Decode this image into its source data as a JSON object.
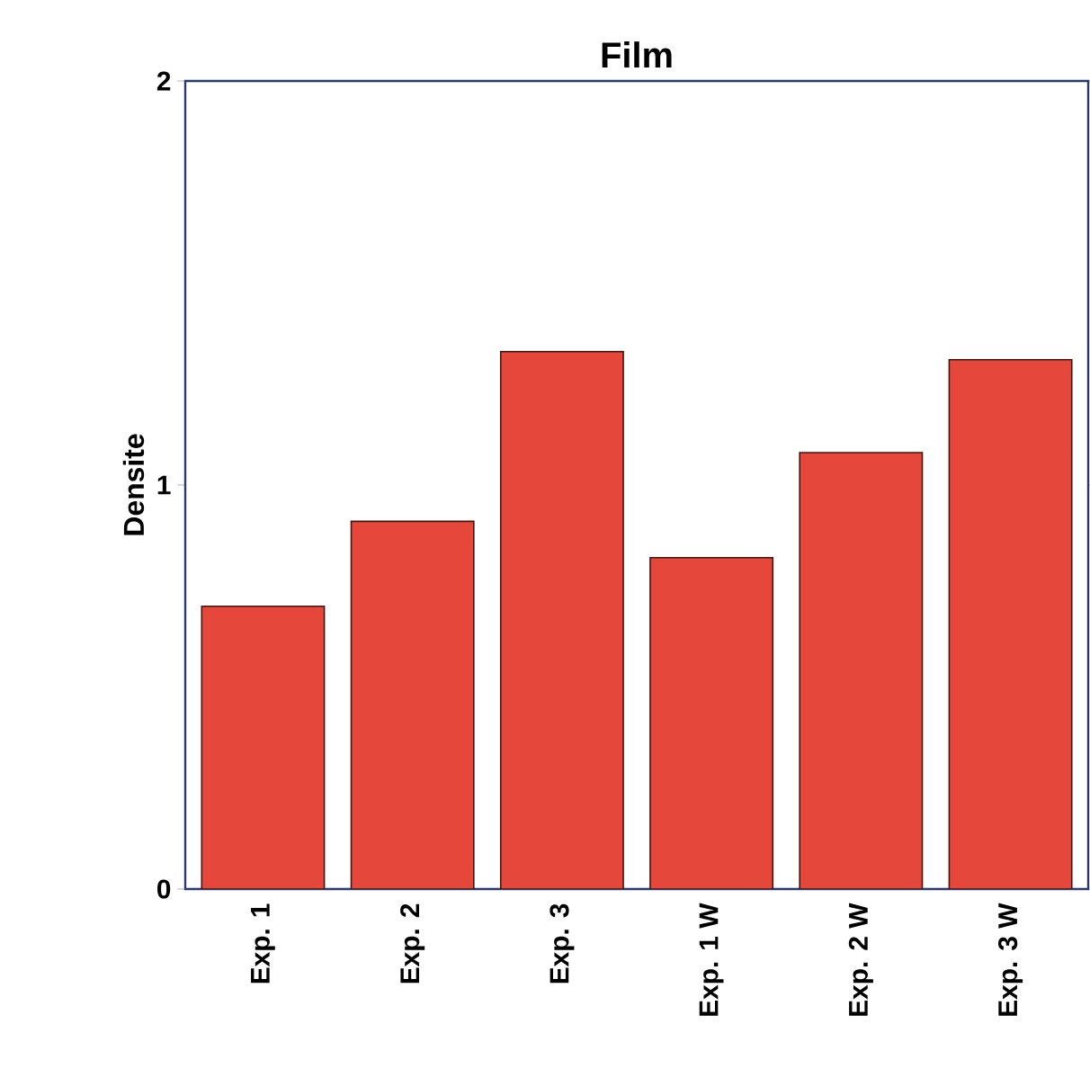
{
  "chart_data": {
    "type": "bar",
    "title": "Film",
    "ylabel": "Densite",
    "categories": [
      "Exp. 1",
      "Exp. 2",
      "Exp. 3",
      "Exp. 1 W",
      "Exp. 2 W",
      "Exp. 3 W"
    ],
    "values": [
      0.7,
      0.91,
      1.33,
      0.82,
      1.08,
      1.31
    ],
    "color": "#e5473a",
    "ylim": [
      0,
      2
    ],
    "yticks": [
      0,
      1,
      2
    ]
  }
}
